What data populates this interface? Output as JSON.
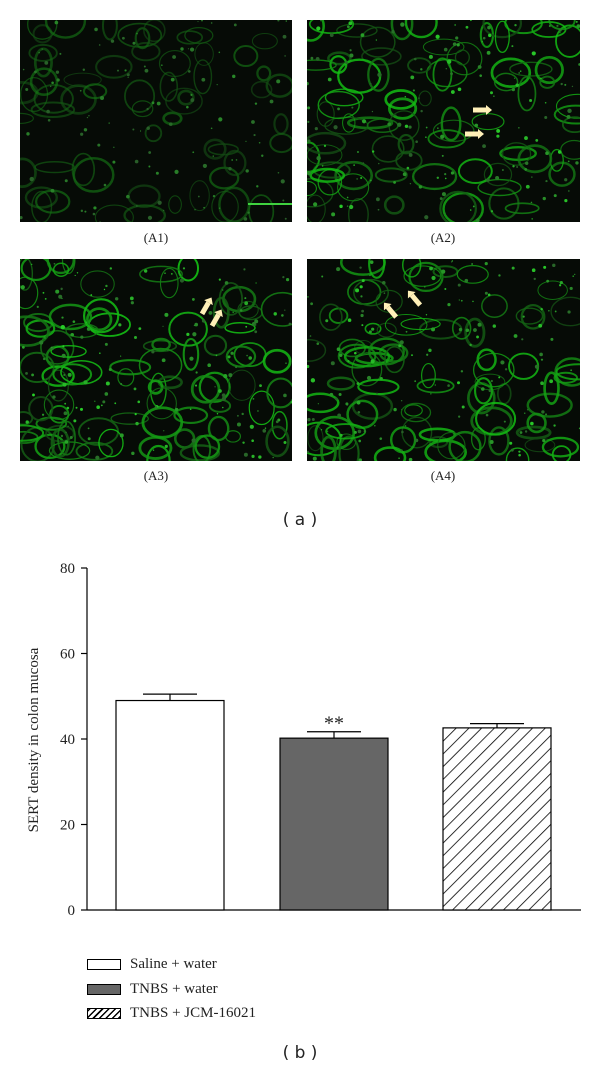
{
  "panels": [
    {
      "label": "(A1)",
      "brightness": 0.35
    },
    {
      "label": "(A2)",
      "brightness": 0.8
    },
    {
      "label": "(A3)",
      "brightness": 0.85
    },
    {
      "label": "(A4)",
      "brightness": 0.8
    }
  ],
  "subfigure_a_label": "( a )",
  "subfigure_b_label": "( b )",
  "chart_data": {
    "type": "bar",
    "ylabel": "SERT density in colon mucosa",
    "xlabel": "",
    "ylim": [
      0,
      80
    ],
    "yticks": [
      "0",
      "20",
      "40",
      "60",
      "80"
    ],
    "series": [
      {
        "name": "Saline + water",
        "value": 49,
        "error": 1.5,
        "annotation": ""
      },
      {
        "name": "TNBS + water",
        "value": 40.2,
        "error": 1.5,
        "annotation": "**"
      },
      {
        "name": "TNBS + JCM-16021",
        "value": 42.6,
        "error": 1.0,
        "annotation": ""
      }
    ],
    "fills": [
      "#ffffff",
      "#666666",
      "hatch"
    ]
  }
}
